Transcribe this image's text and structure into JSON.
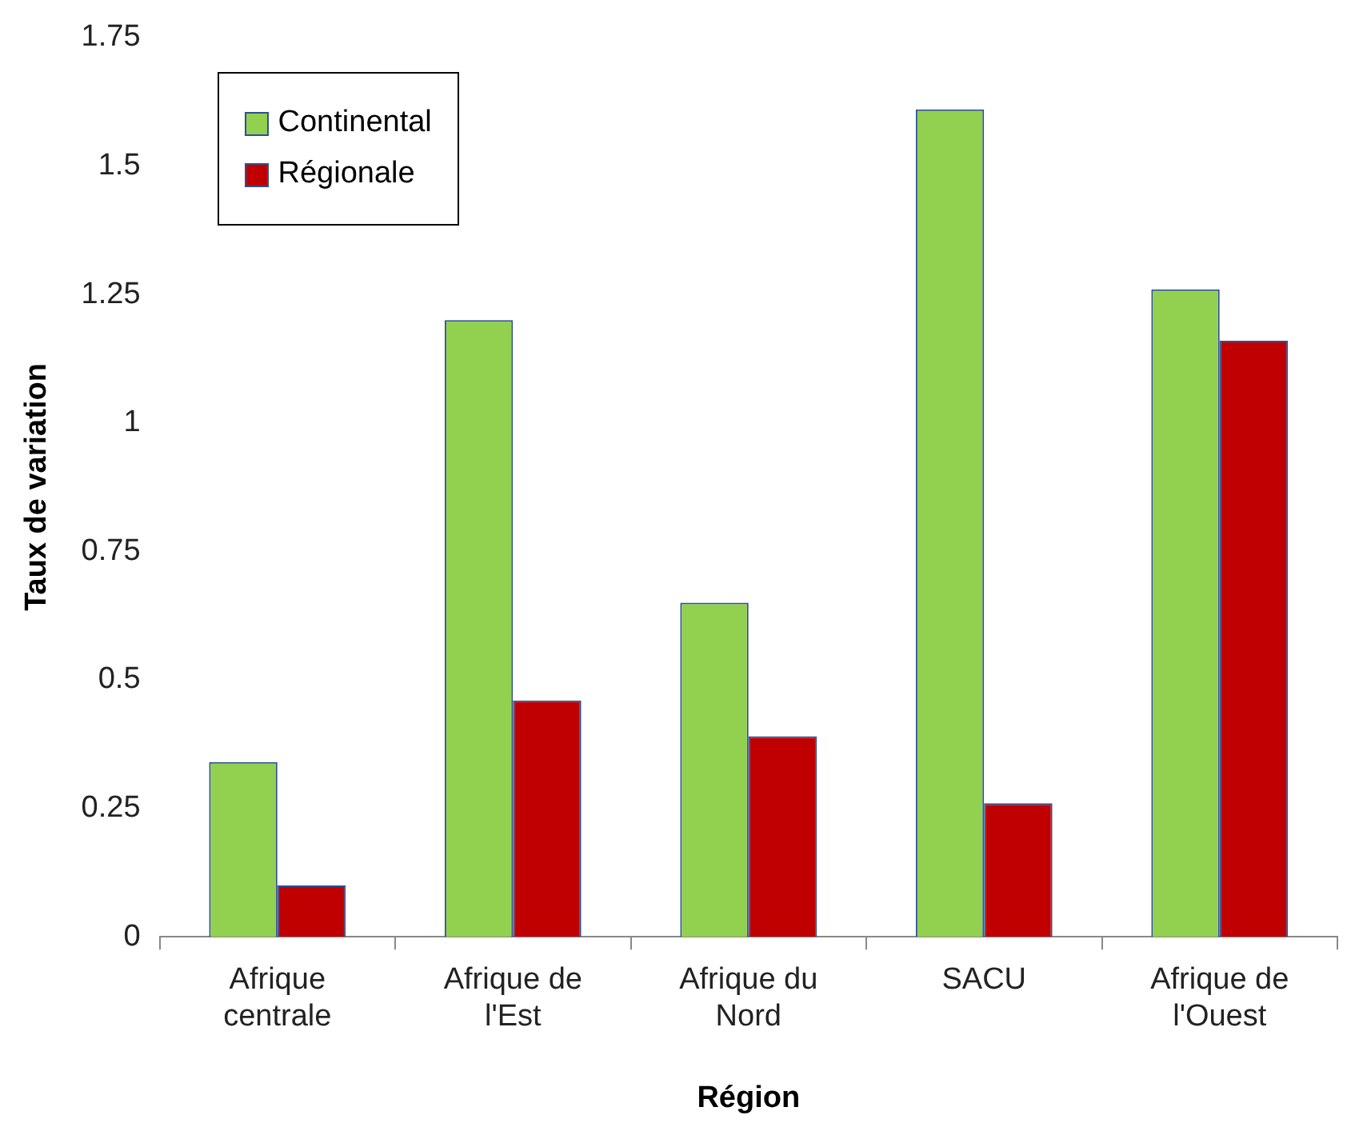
{
  "chart_data": {
    "type": "bar",
    "xlabel": "Région",
    "ylabel": "Taux de variation",
    "categories": [
      "Afrique centrale",
      "Afrique de l'Est",
      "Afrique du Nord",
      "SACU",
      "Afrique de l'Ouest"
    ],
    "series": [
      {
        "name": "Continental",
        "color": "#92d050",
        "values": [
          0.34,
          1.2,
          0.65,
          1.61,
          1.26
        ]
      },
      {
        "name": "Régionale",
        "color": "#c00000",
        "values": [
          0.1,
          0.46,
          0.39,
          0.26,
          1.16
        ]
      }
    ],
    "ylim": [
      0,
      1.75
    ],
    "yticks": [
      0,
      0.25,
      0.5,
      0.75,
      1,
      1.25,
      1.5,
      1.75
    ],
    "grid": false,
    "legend": "top left"
  }
}
